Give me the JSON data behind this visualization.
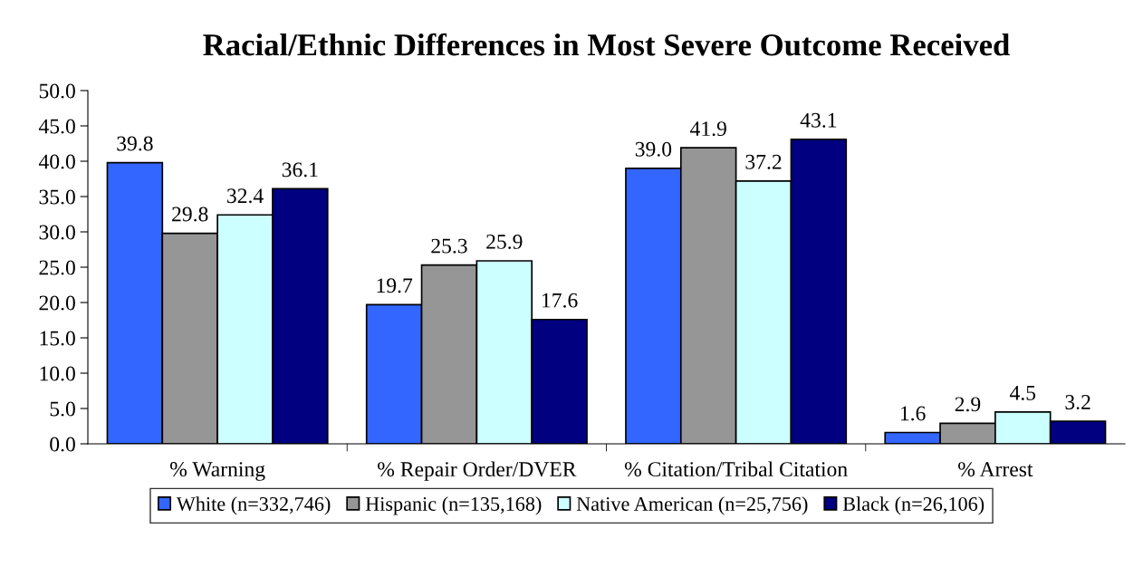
{
  "chart_data": {
    "type": "bar",
    "title": "Racial/Ethnic Differences in Most Severe Outcome Received",
    "categories": [
      "% Warning",
      "% Repair Order/DVER",
      "% Citation/Tribal Citation",
      "% Arrest"
    ],
    "series": [
      {
        "name": "White (n=332,746)",
        "color": "#3366ff",
        "values": [
          39.8,
          19.7,
          39.0,
          1.6
        ],
        "value_labels": [
          "39.8",
          "19.7",
          "39.0",
          "1.6"
        ]
      },
      {
        "name": "Hispanic (n=135,168)",
        "color": "#969696",
        "values": [
          29.8,
          25.3,
          41.9,
          2.9
        ],
        "value_labels": [
          "29.8",
          "25.3",
          "41.9",
          "2.9"
        ]
      },
      {
        "name": "Native American (n=25,756)",
        "color": "#ccffff",
        "values": [
          32.4,
          25.9,
          37.2,
          4.5
        ],
        "value_labels": [
          "32.4",
          "25.9",
          "37.2",
          "4.5"
        ]
      },
      {
        "name": "Black (n=26,106)",
        "color": "#000080",
        "values": [
          36.1,
          17.6,
          43.1,
          3.2
        ],
        "value_labels": [
          "36.1",
          "17.6",
          "43.1",
          "3.2"
        ]
      }
    ],
    "ylim": [
      0,
      50
    ],
    "yticks": [
      {
        "value": 0,
        "label": "0.0"
      },
      {
        "value": 5,
        "label": "5.0"
      },
      {
        "value": 10,
        "label": "10.0"
      },
      {
        "value": 15,
        "label": "15.0"
      },
      {
        "value": 20,
        "label": "20.0"
      },
      {
        "value": 25,
        "label": "25.0"
      },
      {
        "value": 30,
        "label": "30.0"
      },
      {
        "value": 35,
        "label": "35.0"
      },
      {
        "value": 40,
        "label": "40.0"
      },
      {
        "value": 45,
        "label": "45.0"
      },
      {
        "value": 50,
        "label": "50.0"
      }
    ],
    "grid": false,
    "legend": "bottom"
  }
}
